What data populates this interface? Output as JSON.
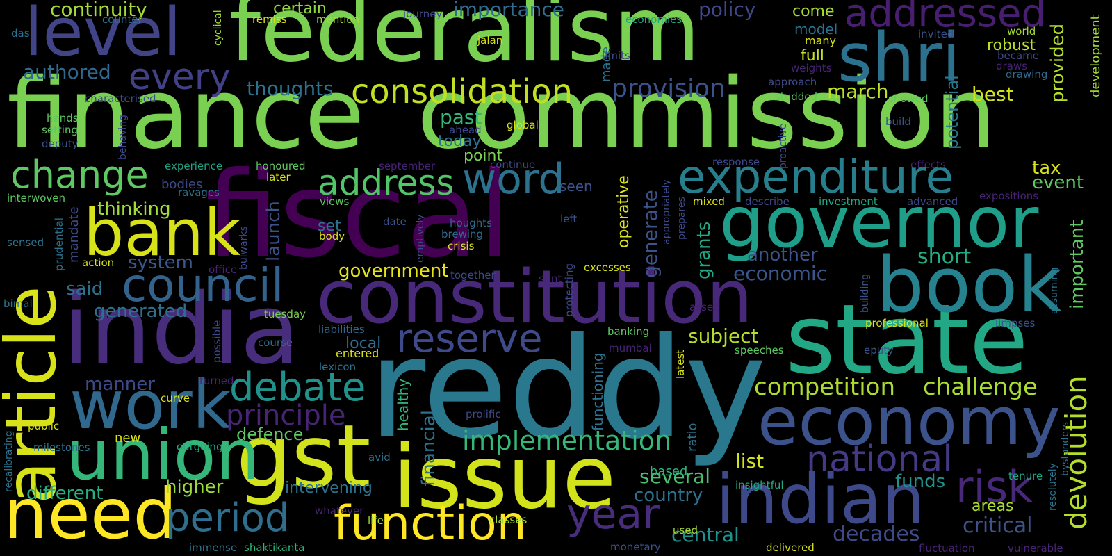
{
  "words": [
    {
      "text": "finance",
      "color": "#7ad151"
    },
    {
      "text": "commission",
      "color": "#7ad151"
    },
    {
      "text": "federalism",
      "color": "#7ad151"
    },
    {
      "text": "fiscal",
      "color": "#440154"
    },
    {
      "text": "reddy",
      "color": "#2a788e"
    },
    {
      "text": "india",
      "color": "#472d7b"
    },
    {
      "text": "state",
      "color": "#22a884"
    },
    {
      "text": "constitution",
      "color": "#482878"
    },
    {
      "text": "governor",
      "color": "#1f9e89"
    },
    {
      "text": "book",
      "color": "#26828e"
    },
    {
      "text": "shri",
      "color": "#2c728e"
    },
    {
      "text": "level",
      "color": "#414487"
    },
    {
      "text": "issue",
      "color": "#d2e21b"
    },
    {
      "text": "gst",
      "color": "#d2e21b"
    },
    {
      "text": "union",
      "color": "#35b779"
    },
    {
      "text": "need",
      "color": "#fde725"
    },
    {
      "text": "economy",
      "color": "#3b528b"
    },
    {
      "text": "indian",
      "color": "#3e4989"
    },
    {
      "text": "article",
      "color": "#d8e219"
    },
    {
      "text": "work",
      "color": "#31688e"
    },
    {
      "text": "bank",
      "color": "#d8e219"
    },
    {
      "text": "function",
      "color": "#fde725"
    },
    {
      "text": "expenditure",
      "color": "#277f8e"
    },
    {
      "text": "consolidation",
      "color": "#c2df23"
    },
    {
      "text": "council",
      "color": "#33638d"
    },
    {
      "text": "address",
      "color": "#52c569"
    },
    {
      "text": "word",
      "color": "#2c728e"
    },
    {
      "text": "addressed",
      "color": "#481f70"
    },
    {
      "text": "change",
      "color": "#5ec962"
    },
    {
      "text": "reserve",
      "color": "#3e4a89"
    },
    {
      "text": "debate",
      "color": "#21918c"
    },
    {
      "text": "period",
      "color": "#2e6e8e"
    },
    {
      "text": "year",
      "color": "#472d7b"
    },
    {
      "text": "national",
      "color": "#443983"
    },
    {
      "text": "risk",
      "color": "#482878"
    },
    {
      "text": "every",
      "color": "#424086"
    },
    {
      "text": "implementation",
      "color": "#35b779"
    },
    {
      "text": "devolution",
      "color": "#b5de2b"
    },
    {
      "text": "competition",
      "color": "#addc30"
    },
    {
      "text": "challenge",
      "color": "#aadc32"
    },
    {
      "text": "principle",
      "color": "#482475"
    },
    {
      "text": "provision",
      "color": "#3b528b"
    },
    {
      "text": "continuity",
      "color": "#a5db36"
    },
    {
      "text": "importance",
      "color": "#2f6c8e"
    },
    {
      "text": "policy",
      "color": "#3f4788"
    },
    {
      "text": "authored",
      "color": "#31688e"
    },
    {
      "text": "thoughts",
      "color": "#2c728e"
    },
    {
      "text": "march",
      "color": "#bddf26"
    },
    {
      "text": "best",
      "color": "#d0e11c"
    },
    {
      "text": "model",
      "color": "#2c728e"
    },
    {
      "text": "full",
      "color": "#c8e020"
    },
    {
      "text": "robust",
      "color": "#bddf26"
    },
    {
      "text": "many",
      "color": "#d8e219"
    },
    {
      "text": "provided",
      "color": "#b5de2b"
    },
    {
      "text": "come",
      "color": "#a8db34"
    },
    {
      "text": "certain",
      "color": "#90d743"
    },
    {
      "text": "generated",
      "color": "#2d708e"
    },
    {
      "text": "system",
      "color": "#38588c"
    },
    {
      "text": "said",
      "color": "#2d708e"
    },
    {
      "text": "thinking",
      "color": "#a2da37"
    },
    {
      "text": "government",
      "color": "#e5e419"
    },
    {
      "text": "economic",
      "color": "#39568c"
    },
    {
      "text": "another",
      "color": "#3b528b"
    },
    {
      "text": "short",
      "color": "#25ac82"
    },
    {
      "text": "event",
      "color": "#5ec962"
    },
    {
      "text": "tax",
      "color": "#d8e219"
    },
    {
      "text": "important",
      "color": "#5ec962"
    },
    {
      "text": "potential",
      "color": "#2a788e"
    },
    {
      "text": "development",
      "color": "#a5db36"
    },
    {
      "text": "subject",
      "color": "#b5de2b"
    },
    {
      "text": "manner",
      "color": "#3e4989"
    },
    {
      "text": "defence",
      "color": "#5ec962"
    },
    {
      "text": "different",
      "color": "#29af7f"
    },
    {
      "text": "higher",
      "color": "#9bd93c"
    },
    {
      "text": "intervening",
      "color": "#2c728e"
    },
    {
      "text": "list",
      "color": "#d2e21b"
    },
    {
      "text": "several",
      "color": "#4ac16d"
    },
    {
      "text": "country",
      "color": "#2c728e"
    },
    {
      "text": "funds",
      "color": "#21918c"
    },
    {
      "text": "central",
      "color": "#21918c"
    },
    {
      "text": "decades",
      "color": "#3e4989"
    },
    {
      "text": "critical",
      "color": "#3b528b"
    },
    {
      "text": "areas",
      "color": "#addc30"
    },
    {
      "text": "past",
      "color": "#32b67a"
    },
    {
      "text": "today",
      "color": "#2c728e"
    },
    {
      "text": "point",
      "color": "#7ad151"
    },
    {
      "text": "set",
      "color": "#2c728e"
    },
    {
      "text": "local",
      "color": "#2f6c8e"
    },
    {
      "text": "entered",
      "color": "#d8e219"
    },
    {
      "text": "launch",
      "color": "#3b528b"
    },
    {
      "text": "generate",
      "color": "#3b528b"
    },
    {
      "text": "grants",
      "color": "#22a884"
    },
    {
      "text": "operative",
      "color": "#d8e219"
    },
    {
      "text": "financial",
      "color": "#2c728e"
    },
    {
      "text": "healthy",
      "color": "#2fb47c"
    },
    {
      "text": "mandate",
      "color": "#3e4989"
    },
    {
      "text": "made",
      "color": "#2c728e"
    },
    {
      "text": "functioning",
      "color": "#2c728e"
    },
    {
      "text": "ratio",
      "color": "#2c728e"
    },
    {
      "text": "bodies",
      "color": "#3e4989"
    },
    {
      "text": "seen",
      "color": "#3b528b"
    },
    {
      "text": "experience",
      "color": "#20a386"
    },
    {
      "text": "honoured",
      "color": "#5ec962"
    },
    {
      "text": "later",
      "color": "#d8e219"
    },
    {
      "text": "ravages",
      "color": "#2c728e"
    },
    {
      "text": "views",
      "color": "#5ec962"
    },
    {
      "text": "date",
      "color": "#3b528b"
    },
    {
      "text": "houghts",
      "color": "#31688e"
    },
    {
      "text": "brewing",
      "color": "#31688e"
    },
    {
      "text": "crisis",
      "color": "#d8e219"
    },
    {
      "text": "body",
      "color": "#d8e219"
    },
    {
      "text": "emptively",
      "color": "#3e4989"
    },
    {
      "text": "left",
      "color": "#3b528b"
    },
    {
      "text": "together",
      "color": "#3e4989"
    },
    {
      "text": "stint",
      "color": "#482475"
    },
    {
      "text": "excesses",
      "color": "#d8e219"
    },
    {
      "text": "protecting",
      "color": "#3e4989"
    },
    {
      "text": "office",
      "color": "#482475"
    },
    {
      "text": "bulwarks",
      "color": "#3e4989"
    },
    {
      "text": "action",
      "color": "#d8e219"
    },
    {
      "text": "prudential",
      "color": "#2c728e"
    },
    {
      "text": "sensed",
      "color": "#2c728e"
    },
    {
      "text": "interwoven",
      "color": "#5ec962"
    },
    {
      "text": "bimal",
      "color": "#2c728e"
    },
    {
      "text": "tuesday",
      "color": "#7ad151"
    },
    {
      "text": "possible",
      "color": "#3e4989"
    },
    {
      "text": "liabilities",
      "color": "#31688e"
    },
    {
      "text": "course",
      "color": "#31688e"
    },
    {
      "text": "lexicon",
      "color": "#2c728e"
    },
    {
      "text": "turned",
      "color": "#482475"
    },
    {
      "text": "curve",
      "color": "#d8e219"
    },
    {
      "text": "public",
      "color": "#d8e219"
    },
    {
      "text": "milestones",
      "color": "#2c728e"
    },
    {
      "text": "new",
      "color": "#d8e219"
    },
    {
      "text": "outgoing",
      "color": "#22a884"
    },
    {
      "text": "avid",
      "color": "#2c728e"
    },
    {
      "text": "prolific",
      "color": "#3e4989"
    },
    {
      "text": "recalibrating",
      "color": "#2c728e"
    },
    {
      "text": "immense",
      "color": "#2c728e"
    },
    {
      "text": "shaktikanta",
      "color": "#2fb47c"
    },
    {
      "text": "life",
      "color": "#a5db36"
    },
    {
      "text": "whatever",
      "color": "#482475"
    },
    {
      "text": "classes",
      "color": "#a5db36"
    },
    {
      "text": "monetary",
      "color": "#3b528b"
    },
    {
      "text": "used",
      "color": "#a5db36"
    },
    {
      "text": "delivered",
      "color": "#d8e219"
    },
    {
      "text": "fluctuation",
      "color": "#482475"
    },
    {
      "text": "vulnerable",
      "color": "#482475"
    },
    {
      "text": "resolutely",
      "color": "#2c728e"
    },
    {
      "text": "bystanders",
      "color": "#2c728e"
    },
    {
      "text": "tenure",
      "color": "#22a884"
    },
    {
      "text": "insightful",
      "color": "#22a884"
    },
    {
      "text": "based",
      "color": "#2fb47c"
    },
    {
      "text": "professional",
      "color": "#d8e219"
    },
    {
      "text": "limpses",
      "color": "#3b528b"
    },
    {
      "text": "eputy",
      "color": "#3b528b"
    },
    {
      "text": "speeches",
      "color": "#5ec962"
    },
    {
      "text": "latest",
      "color": "#d8e219"
    },
    {
      "text": "mumbai",
      "color": "#482475"
    },
    {
      "text": "banking",
      "color": "#5ec962"
    },
    {
      "text": "asset",
      "color": "#482475"
    },
    {
      "text": "building",
      "color": "#3b528b"
    },
    {
      "text": "assuming",
      "color": "#2c728e"
    },
    {
      "text": "mixed",
      "color": "#d8e219"
    },
    {
      "text": "prepares",
      "color": "#3e4989"
    },
    {
      "text": "appropriately",
      "color": "#3e4989"
    },
    {
      "text": "describe",
      "color": "#3e4989"
    },
    {
      "text": "investment",
      "color": "#22a884"
    },
    {
      "text": "advanced",
      "color": "#3e4989"
    },
    {
      "text": "expositions",
      "color": "#482475"
    },
    {
      "text": "response",
      "color": "#3e4989"
    },
    {
      "text": "proactive",
      "color": "#3e4989"
    },
    {
      "text": "effects",
      "color": "#482475"
    },
    {
      "text": "continue",
      "color": "#3e4989"
    },
    {
      "text": "september",
      "color": "#482475"
    },
    {
      "text": "global",
      "color": "#d8e219"
    },
    {
      "text": "ahead",
      "color": "#3e4989"
    },
    {
      "text": "build",
      "color": "#3b528b"
    },
    {
      "text": "showed",
      "color": "#5ec962"
    },
    {
      "text": "studded",
      "color": "#5ec962"
    },
    {
      "text": "approach",
      "color": "#3e4989"
    },
    {
      "text": "weights",
      "color": "#482475"
    },
    {
      "text": "became",
      "color": "#3e4989"
    },
    {
      "text": "draws",
      "color": "#482475"
    },
    {
      "text": "drawing",
      "color": "#31688e"
    },
    {
      "text": "invited",
      "color": "#3b528b"
    },
    {
      "text": "world",
      "color": "#a5db36"
    },
    {
      "text": "economies",
      "color": "#22a884"
    },
    {
      "text": "limits",
      "color": "#3e4989"
    },
    {
      "text": "jalan",
      "color": "#d8e219"
    },
    {
      "text": "journey",
      "color": "#3e4989"
    },
    {
      "text": "mention",
      "color": "#a5db36"
    },
    {
      "text": "remiss",
      "color": "#d8e219"
    },
    {
      "text": "counter",
      "color": "#2c728e"
    },
    {
      "text": "das",
      "color": "#2c728e"
    },
    {
      "text": "cyclical",
      "color": "#a5db36"
    },
    {
      "text": "characterised",
      "color": "#3e4989"
    },
    {
      "text": "hands",
      "color": "#5ec962"
    },
    {
      "text": "setting",
      "color": "#5ec962"
    },
    {
      "text": "deputy",
      "color": "#3b528b"
    },
    {
      "text": "behaving",
      "color": "#3e4989"
    }
  ]
}
